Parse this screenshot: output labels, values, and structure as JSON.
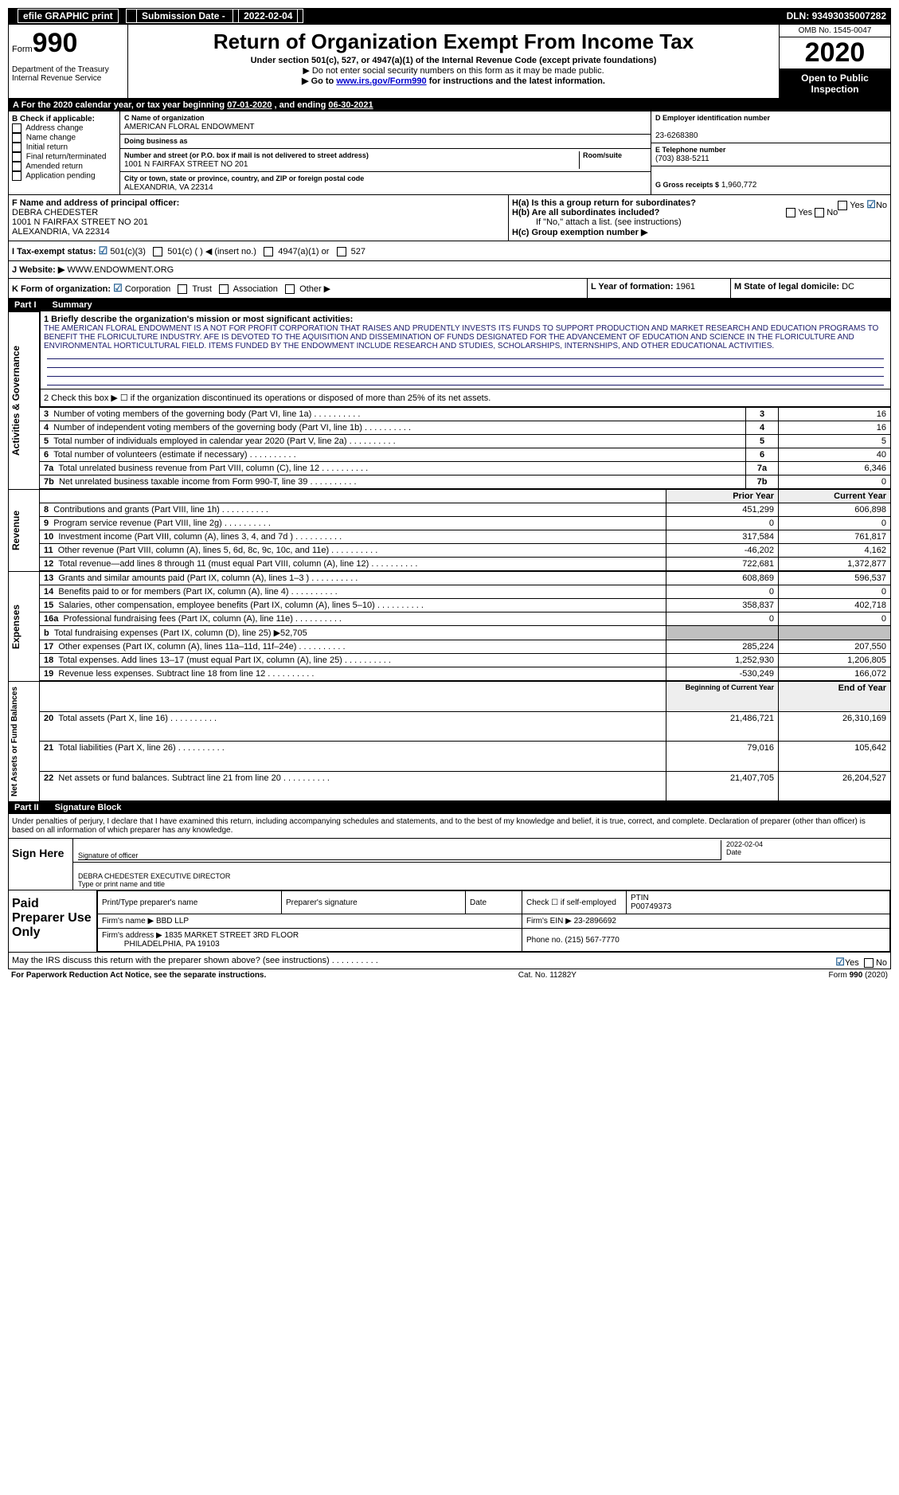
{
  "top": {
    "efile": "efile GRAPHIC print",
    "subdate_lbl": "Submission Date - ",
    "subdate": "2022-02-04",
    "dln_lbl": "DLN: ",
    "dln": "93493035007282"
  },
  "header": {
    "form_word": "Form",
    "form_num": "990",
    "dept": "Department of the Treasury\nInternal Revenue Service",
    "title": "Return of Organization Exempt From Income Tax",
    "sub1": "Under section 501(c), 527, or 4947(a)(1) of the Internal Revenue Code (except private foundations)",
    "sub2": "▶ Do not enter social security numbers on this form as it may be made public.",
    "sub3a": "▶ Go to ",
    "sub3_link": "www.irs.gov/Form990",
    "sub3b": " for instructions and the latest information.",
    "omb": "OMB No. 1545-0047",
    "year": "2020",
    "open": "Open to Public Inspection"
  },
  "A": {
    "text": "A For the 2020 calendar year, or tax year beginning ",
    "begin": "07-01-2020",
    "mid": " , and ending ",
    "end": "06-30-2021"
  },
  "B": {
    "lbl": "B Check if applicable:",
    "opts": [
      "Address change",
      "Name change",
      "Initial return",
      "Final return/terminated",
      "Amended return",
      "Application pending"
    ]
  },
  "C": {
    "name_lbl": "C Name of organization",
    "name": "AMERICAN FLORAL ENDOWMENT",
    "dba_lbl": "Doing business as",
    "addr_lbl": "Number and street (or P.O. box if mail is not delivered to street address)",
    "room_lbl": "Room/suite",
    "addr": "1001 N FAIRFAX STREET NO 201",
    "city_lbl": "City or town, state or province, country, and ZIP or foreign postal code",
    "city": "ALEXANDRIA, VA  22314"
  },
  "D": {
    "lbl": "D Employer identification number",
    "val": "23-6268380"
  },
  "E": {
    "lbl": "E Telephone number",
    "val": "(703) 838-5211"
  },
  "G": {
    "lbl": "G Gross receipts $",
    "val": "1,960,772"
  },
  "F": {
    "lbl": "F  Name and address of principal officer:",
    "name": "DEBRA CHEDESTER",
    "addr1": "1001 N FAIRFAX STREET NO 201",
    "addr2": "ALEXANDRIA, VA  22314"
  },
  "H": {
    "a": "H(a)  Is this a group return for subordinates?",
    "b": "H(b)  Are all subordinates included?",
    "bnote": "If \"No,\" attach a list. (see instructions)",
    "c": "H(c)  Group exemption number ▶",
    "yes": "Yes",
    "no": "No"
  },
  "I": {
    "lbl": "I    Tax-exempt status:",
    "o1": "501(c)(3)",
    "o2": "501(c) ( ) ◀ (insert no.)",
    "o3": "4947(a)(1) or",
    "o4": "527"
  },
  "J": {
    "lbl": "J   Website: ▶",
    "val": "WWW.ENDOWMENT.ORG"
  },
  "K": {
    "lbl": "K Form of organization:",
    "opts": [
      "Corporation",
      "Trust",
      "Association",
      "Other ▶"
    ]
  },
  "L": {
    "lbl": "L Year of formation:",
    "val": "1961"
  },
  "M": {
    "lbl": "M State of legal domicile:",
    "val": "DC"
  },
  "part1": {
    "pn": "Part I",
    "title": "Summary"
  },
  "mission": {
    "lbl": "1   Briefly describe the organization's mission or most significant activities:",
    "text": "THE AMERICAN FLORAL ENDOWMENT IS A NOT FOR PROFIT CORPORATION THAT RAISES AND PRUDENTLY INVESTS ITS FUNDS TO SUPPORT PRODUCTION AND MARKET RESEARCH AND EDUCATION PROGRAMS TO BENEFIT THE FLORICULTURE INDUSTRY. AFE IS DEVOTED TO THE AQUISITION AND DISSEMINATION OF FUNDS DESIGNATED FOR THE ADVANCEMENT OF EDUCATION AND SCIENCE IN THE FLORICULTURE AND ENVIRONMENTAL HORTICULTURAL FIELD. ITEMS FUNDED BY THE ENDOWMENT INCLUDE RESEARCH AND STUDIES, SCHOLARSHIPS, INTERNSHIPS, AND OTHER EDUCATIONAL ACTIVITIES."
  },
  "gov": {
    "sec_label": "Activities & Governance",
    "l2": "2   Check this box ▶ ☐ if the organization discontinued its operations or disposed of more than 25% of its net assets.",
    "rows": [
      {
        "n": "3",
        "t": "Number of voting members of the governing body (Part VI, line 1a)",
        "v": "16"
      },
      {
        "n": "4",
        "t": "Number of independent voting members of the governing body (Part VI, line 1b)",
        "v": "16"
      },
      {
        "n": "5",
        "t": "Total number of individuals employed in calendar year 2020 (Part V, line 2a)",
        "v": "5"
      },
      {
        "n": "6",
        "t": "Total number of volunteers (estimate if necessary)",
        "v": "40"
      },
      {
        "n": "7a",
        "t": "Total unrelated business revenue from Part VIII, column (C), line 12",
        "v": "6,346"
      },
      {
        "n": "7b",
        "t": "Net unrelated business taxable income from Form 990-T, line 39",
        "v": "0"
      }
    ]
  },
  "rev": {
    "sec_label": "Revenue",
    "hdr_prior": "Prior Year",
    "hdr_cur": "Current Year",
    "rows": [
      {
        "n": "8",
        "t": "Contributions and grants (Part VIII, line 1h)",
        "p": "451,299",
        "c": "606,898"
      },
      {
        "n": "9",
        "t": "Program service revenue (Part VIII, line 2g)",
        "p": "0",
        "c": "0"
      },
      {
        "n": "10",
        "t": "Investment income (Part VIII, column (A), lines 3, 4, and 7d )",
        "p": "317,584",
        "c": "761,817"
      },
      {
        "n": "11",
        "t": "Other revenue (Part VIII, column (A), lines 5, 6d, 8c, 9c, 10c, and 11e)",
        "p": "-46,202",
        "c": "4,162"
      },
      {
        "n": "12",
        "t": "Total revenue—add lines 8 through 11 (must equal Part VIII, column (A), line 12)",
        "p": "722,681",
        "c": "1,372,877"
      }
    ]
  },
  "exp": {
    "sec_label": "Expenses",
    "rows": [
      {
        "n": "13",
        "t": "Grants and similar amounts paid (Part IX, column (A), lines 1–3 )",
        "p": "608,869",
        "c": "596,537"
      },
      {
        "n": "14",
        "t": "Benefits paid to or for members (Part IX, column (A), line 4)",
        "p": "0",
        "c": "0"
      },
      {
        "n": "15",
        "t": "Salaries, other compensation, employee benefits (Part IX, column (A), lines 5–10)",
        "p": "358,837",
        "c": "402,718"
      },
      {
        "n": "16a",
        "t": "Professional fundraising fees (Part IX, column (A), line 11e)",
        "p": "0",
        "c": "0"
      },
      {
        "n": "b",
        "t": "Total fundraising expenses (Part IX, column (D), line 25) ▶52,705",
        "p": "",
        "c": "",
        "grey": true
      },
      {
        "n": "17",
        "t": "Other expenses (Part IX, column (A), lines 11a–11d, 11f–24e)",
        "p": "285,224",
        "c": "207,550"
      },
      {
        "n": "18",
        "t": "Total expenses. Add lines 13–17 (must equal Part IX, column (A), line 25)",
        "p": "1,252,930",
        "c": "1,206,805"
      },
      {
        "n": "19",
        "t": "Revenue less expenses. Subtract line 18 from line 12",
        "p": "-530,249",
        "c": "166,072"
      }
    ]
  },
  "net": {
    "sec_label": "Net Assets or Fund Balances",
    "hdr_beg": "Beginning of Current Year",
    "hdr_end": "End of Year",
    "rows": [
      {
        "n": "20",
        "t": "Total assets (Part X, line 16)",
        "p": "21,486,721",
        "c": "26,310,169"
      },
      {
        "n": "21",
        "t": "Total liabilities (Part X, line 26)",
        "p": "79,016",
        "c": "105,642"
      },
      {
        "n": "22",
        "t": "Net assets or fund balances. Subtract line 21 from line 20",
        "p": "21,407,705",
        "c": "26,204,527"
      }
    ]
  },
  "part2": {
    "pn": "Part II",
    "title": "Signature Block"
  },
  "sig": {
    "perjury": "Under penalties of perjury, I declare that I have examined this return, including accompanying schedules and statements, and to the best of my knowledge and belief, it is true, correct, and complete. Declaration of preparer (other than officer) is based on all information of which preparer has any knowledge.",
    "signhere": "Sign Here",
    "sigoff": "Signature of officer",
    "date": "Date",
    "sigdate": "2022-02-04",
    "name": "DEBRA CHEDESTER  EXECUTIVE DIRECTOR",
    "name_lbl": "Type or print name and title"
  },
  "prep": {
    "hdr": "Paid Preparer Use Only",
    "cols": [
      "Print/Type preparer's name",
      "Preparer's signature",
      "Date"
    ],
    "self": "Check ☐ if self-employed",
    "ptin_lbl": "PTIN",
    "ptin": "P00749373",
    "firm_lbl": "Firm's name  ▶",
    "firm": "BBD LLP",
    "ein_lbl": "Firm's EIN ▶",
    "ein": "23-2896692",
    "addr_lbl": "Firm's address ▶",
    "addr": "1835 MARKET STREET 3RD FLOOR",
    "addr2": "PHILADELPHIA, PA  19103",
    "phone_lbl": "Phone no.",
    "phone": "(215) 567-7770"
  },
  "discuss": {
    "t": "May the IRS discuss this return with the preparer shown above? (see instructions)",
    "yes": "Yes",
    "no": "No"
  },
  "foot": {
    "pra": "For Paperwork Reduction Act Notice, see the separate instructions.",
    "cat": "Cat. No. 11282Y",
    "form": "Form 990 (2020)"
  }
}
